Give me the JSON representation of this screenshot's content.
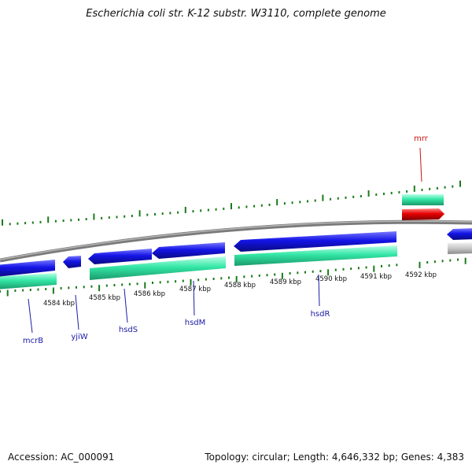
{
  "title": "Escherichia coli str. K-12 substr. W3110, complete genome",
  "footer": {
    "accession": "Accession: AC_000091",
    "summary": "Topology: circular; Length: 4,646,332 bp; Genes: 4,383"
  },
  "colors": {
    "ring": "#7a7a7a",
    "gene_forward": "#1414e6",
    "gene_reverse": "#1414e6",
    "cds": "#33e6a6",
    "highlight": "#e60000",
    "other": "#c8c8c8",
    "ticks": "#1a7a1a",
    "gene_label": "#1a1aa6",
    "highlight_label": "#cc1111"
  },
  "kbp_labels": [
    "4584 kbp",
    "4585 kbp",
    "4586 kbp",
    "4587 kbp",
    "4588 kbp",
    "4589 kbp",
    "4590 kbp",
    "4591 kbp",
    "4592 kbp"
  ],
  "gene_labels": [
    {
      "name": "mcrB",
      "color": "gene_label"
    },
    {
      "name": "yjiW",
      "color": "gene_label"
    },
    {
      "name": "hsdS",
      "color": "gene_label"
    },
    {
      "name": "hsdM",
      "color": "gene_label"
    },
    {
      "name": "hsdR",
      "color": "gene_label"
    },
    {
      "name": "mrr",
      "color": "highlight_label"
    }
  ]
}
